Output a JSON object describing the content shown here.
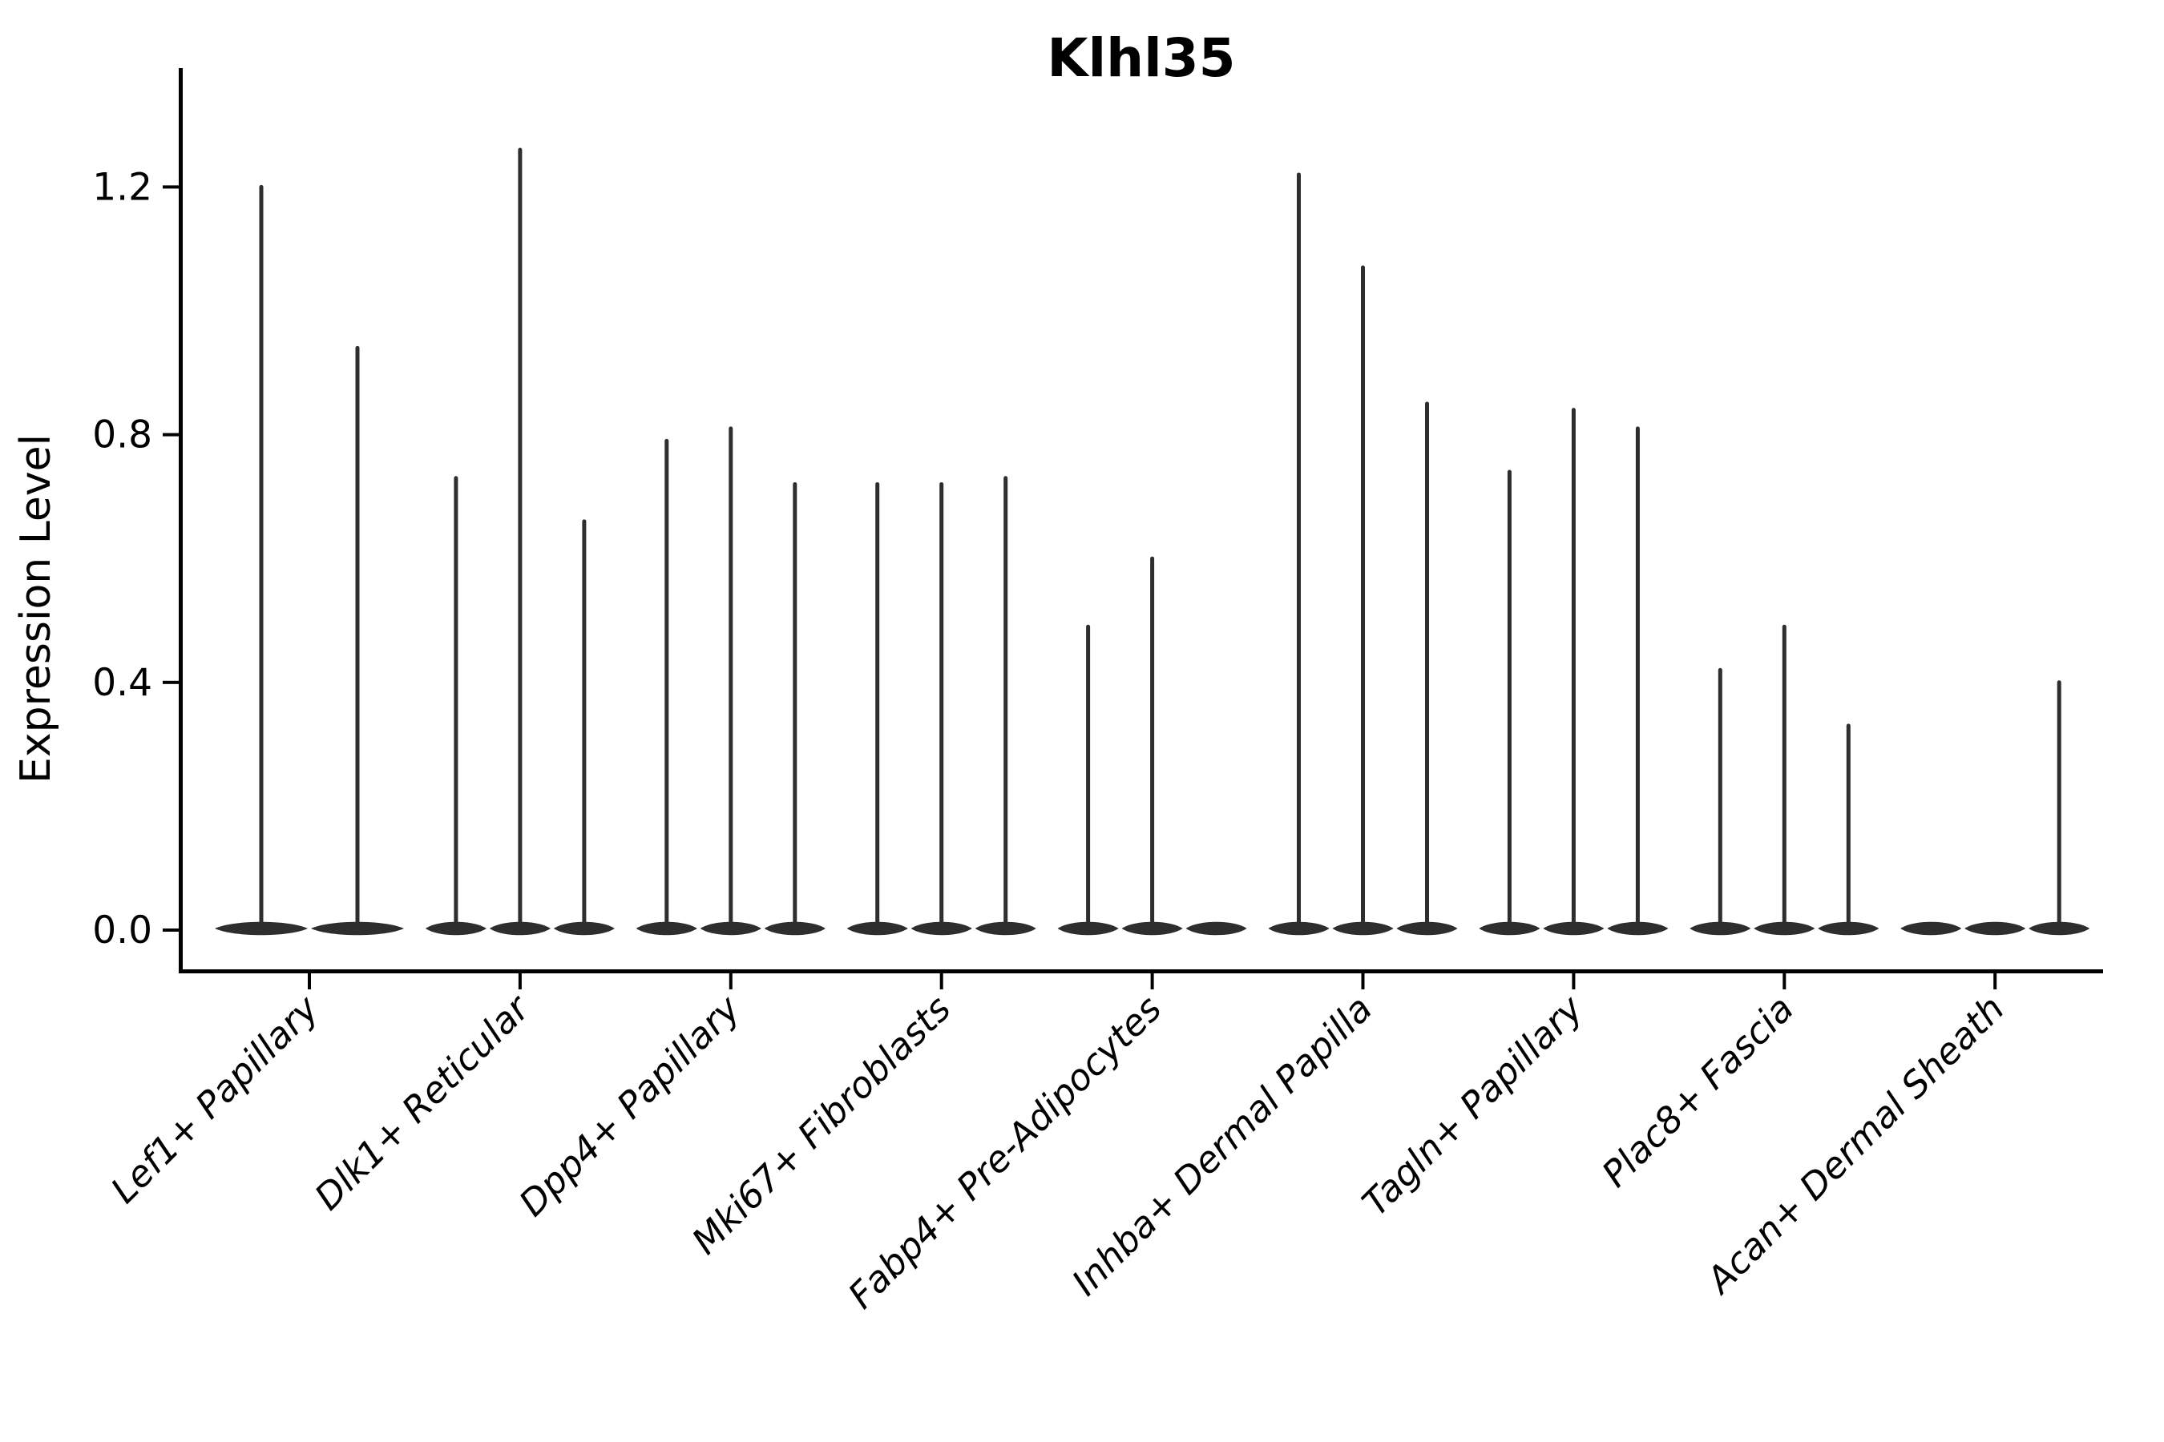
{
  "figure": {
    "background": "#ffffff"
  },
  "chart_data": {
    "type": "violin",
    "title": "Klhl35",
    "xlabel": "",
    "ylabel": "Expression Level",
    "grid": false,
    "legend": null,
    "ylim": [
      -0.066,
      1.392
    ],
    "yticks": [
      {
        "value": 0.0,
        "label": "0.0"
      },
      {
        "value": 0.4,
        "label": "0.4"
      },
      {
        "value": 0.8,
        "label": "0.8"
      },
      {
        "value": 1.2,
        "label": "1.2"
      }
    ],
    "violin_color": "#2e2e2e",
    "text_color": "#000000",
    "categories": [
      "Lef1+ Papillary",
      "Dlk1+ Reticular",
      "Dpp4+ Papillary",
      "Mki67+ Fibroblasts",
      "Fabp4+ Pre-Adipocytes",
      "Inhba+ Dermal Papilla",
      "Tagln+ Papillary",
      "Plac8+ Fascia",
      "Acan+ Dermal Sheath"
    ],
    "groups": [
      {
        "label": "Lef1+ Papillary",
        "violins": [
          {
            "max": 1.2
          },
          {
            "max": 0.94
          }
        ]
      },
      {
        "label": "Dlk1+ Reticular",
        "violins": [
          {
            "max": 0.73
          },
          {
            "max": 1.26
          },
          {
            "max": 0.66
          }
        ]
      },
      {
        "label": "Dpp4+ Papillary",
        "violins": [
          {
            "max": 0.79
          },
          {
            "max": 0.81
          },
          {
            "max": 0.72
          }
        ]
      },
      {
        "label": "Mki67+ Fibroblasts",
        "violins": [
          {
            "max": 0.72
          },
          {
            "max": 0.72
          },
          {
            "max": 0.73
          }
        ]
      },
      {
        "label": "Fabp4+ Pre-Adipocytes",
        "violins": [
          {
            "max": 0.49
          },
          {
            "max": 0.6
          },
          {
            "max": 0.0
          }
        ]
      },
      {
        "label": "Inhba+ Dermal Papilla",
        "violins": [
          {
            "max": 1.22
          },
          {
            "max": 1.07
          },
          {
            "max": 0.85
          }
        ]
      },
      {
        "label": "Tagln+ Papillary",
        "violins": [
          {
            "max": 0.74
          },
          {
            "max": 0.84
          },
          {
            "max": 0.81
          }
        ]
      },
      {
        "label": "Plac8+ Fascia",
        "violins": [
          {
            "max": 0.42
          },
          {
            "max": 0.49
          },
          {
            "max": 0.33
          }
        ]
      },
      {
        "label": "Acan+ Dermal Sheath",
        "violins": [
          {
            "max": 0.0
          },
          {
            "max": 0.0
          },
          {
            "max": 0.4
          }
        ]
      }
    ]
  }
}
